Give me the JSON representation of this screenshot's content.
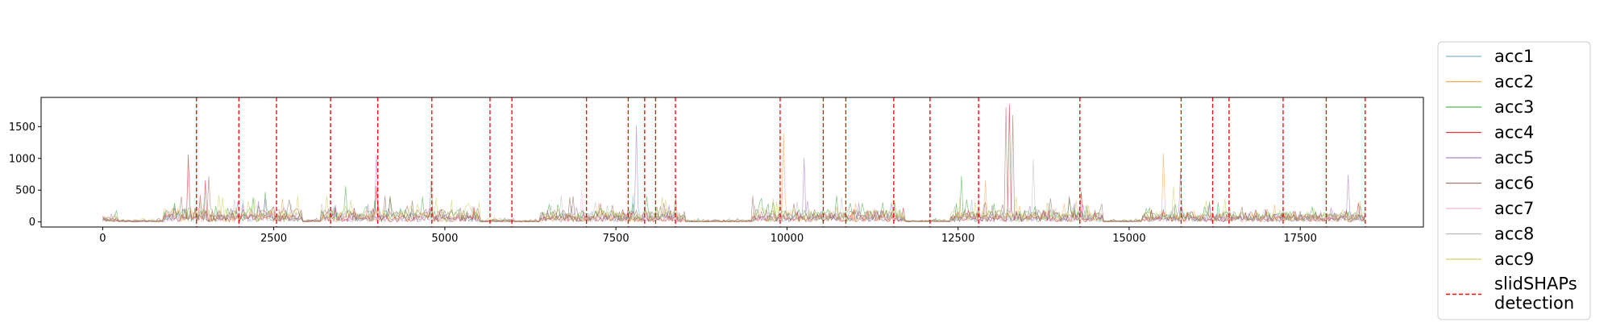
{
  "chart_data": {
    "type": "line",
    "title": "",
    "xlabel": "",
    "ylabel": "",
    "xlim": [
      -900,
      19300
    ],
    "ylim": [
      -80,
      1960
    ],
    "x_ticks": [
      0,
      2500,
      5000,
      7500,
      10000,
      12500,
      15000,
      17500
    ],
    "x_tick_labels": [
      "0",
      "2500",
      "5000",
      "7500",
      "10000",
      "12500",
      "15000",
      "17500"
    ],
    "y_ticks": [
      0,
      500,
      1000,
      1500
    ],
    "y_tick_labels": [
      "0",
      "500",
      "1000",
      "1500"
    ],
    "grid": false,
    "legend_position": "right",
    "x_range": [
      0,
      18450
    ],
    "activity_segments": [
      [
        0,
        200,
        80
      ],
      [
        900,
        2900,
        200
      ],
      [
        3200,
        5500,
        180
      ],
      [
        5700,
        6000,
        40
      ],
      [
        6400,
        8500,
        170
      ],
      [
        9500,
        11700,
        180
      ],
      [
        12400,
        14600,
        170
      ],
      [
        15200,
        18450,
        150
      ]
    ],
    "series": [
      {
        "name": "acc1",
        "color": "#1f77b4",
        "opacity": 0.35,
        "peaks": [
          [
            7750,
            420
          ],
          [
            9900,
            380
          ],
          [
            12700,
            350
          ]
        ]
      },
      {
        "name": "acc2",
        "color": "#ff7f0e",
        "opacity": 0.5,
        "peaks": [
          [
            9950,
            1400
          ],
          [
            15500,
            1080
          ],
          [
            12900,
            650
          ]
        ]
      },
      {
        "name": "acc3",
        "color": "#2ca02c",
        "opacity": 0.6,
        "peaks": [
          [
            200,
            180
          ],
          [
            3550,
            560
          ],
          [
            12550,
            720
          ]
        ]
      },
      {
        "name": "acc4",
        "color": "#d62728",
        "opacity": 0.7,
        "peaks": [
          [
            1250,
            1060
          ],
          [
            1500,
            650
          ],
          [
            4000,
            560
          ],
          [
            13250,
            1850
          ],
          [
            14300,
            470
          ],
          [
            18350,
            300
          ]
        ]
      },
      {
        "name": "acc5",
        "color": "#9467bd",
        "opacity": 0.6,
        "peaks": [
          [
            4000,
            1060
          ],
          [
            7800,
            1520
          ],
          [
            10250,
            1000
          ],
          [
            15750,
            780
          ],
          [
            18200,
            740
          ]
        ]
      },
      {
        "name": "acc6",
        "color": "#8c564b",
        "opacity": 0.6,
        "peaks": [
          [
            13200,
            1800
          ],
          [
            13300,
            1680
          ],
          [
            1550,
            720
          ],
          [
            4800,
            650
          ]
        ]
      },
      {
        "name": "acc7",
        "color": "#e377c2",
        "opacity": 0.35,
        "peaks": [
          [
            7000,
            500
          ],
          [
            12800,
            430
          ]
        ]
      },
      {
        "name": "acc8",
        "color": "#7f7f7f",
        "opacity": 0.35,
        "peaks": [
          [
            13600,
            980
          ],
          [
            6700,
            420
          ],
          [
            10800,
            380
          ]
        ]
      },
      {
        "name": "acc9",
        "color": "#bcbd22",
        "opacity": 0.5,
        "peaks": [
          [
            1700,
            420
          ],
          [
            9900,
            450
          ],
          [
            15650,
            560
          ]
        ]
      }
    ],
    "detection": {
      "name": "slidSHAPs\ndetection",
      "color": "#ff0000",
      "x": [
        1370,
        1990,
        2540,
        3330,
        4020,
        4810,
        5660,
        5980,
        7070,
        7680,
        7920,
        8080,
        8370,
        9900,
        10530,
        10860,
        11560,
        12090,
        12800,
        14280,
        15760,
        16220,
        16460,
        17250,
        17880,
        18450
      ]
    }
  }
}
